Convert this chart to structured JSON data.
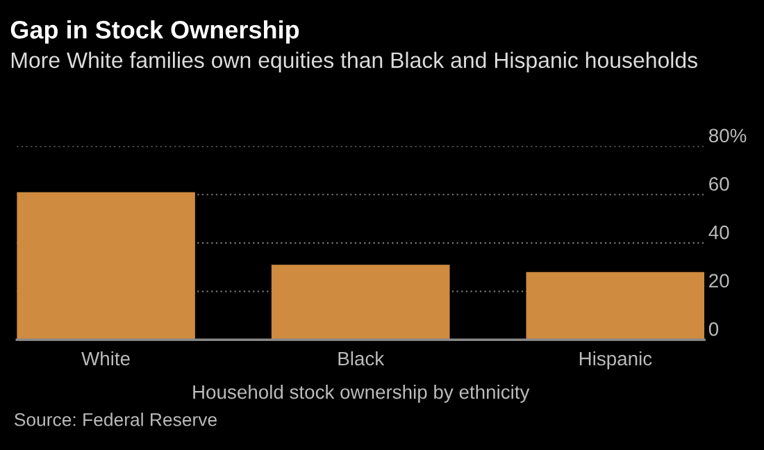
{
  "chart_data": {
    "type": "bar",
    "title": "Gap in Stock Ownership",
    "subtitle": "More White families own equities than Black and Hispanic households",
    "categories": [
      "White",
      "Black",
      "Hispanic"
    ],
    "values": [
      61,
      31,
      28
    ],
    "color": "#cf8b3f",
    "xlabel": "Household stock ownership by ethnicity",
    "ylim": [
      0,
      80
    ],
    "yticks": [
      0,
      20,
      40,
      60,
      {
        "value": 80,
        "label": "80%"
      }
    ],
    "grid": "y",
    "annotations": [
      "Source: Federal Reserve"
    ]
  }
}
